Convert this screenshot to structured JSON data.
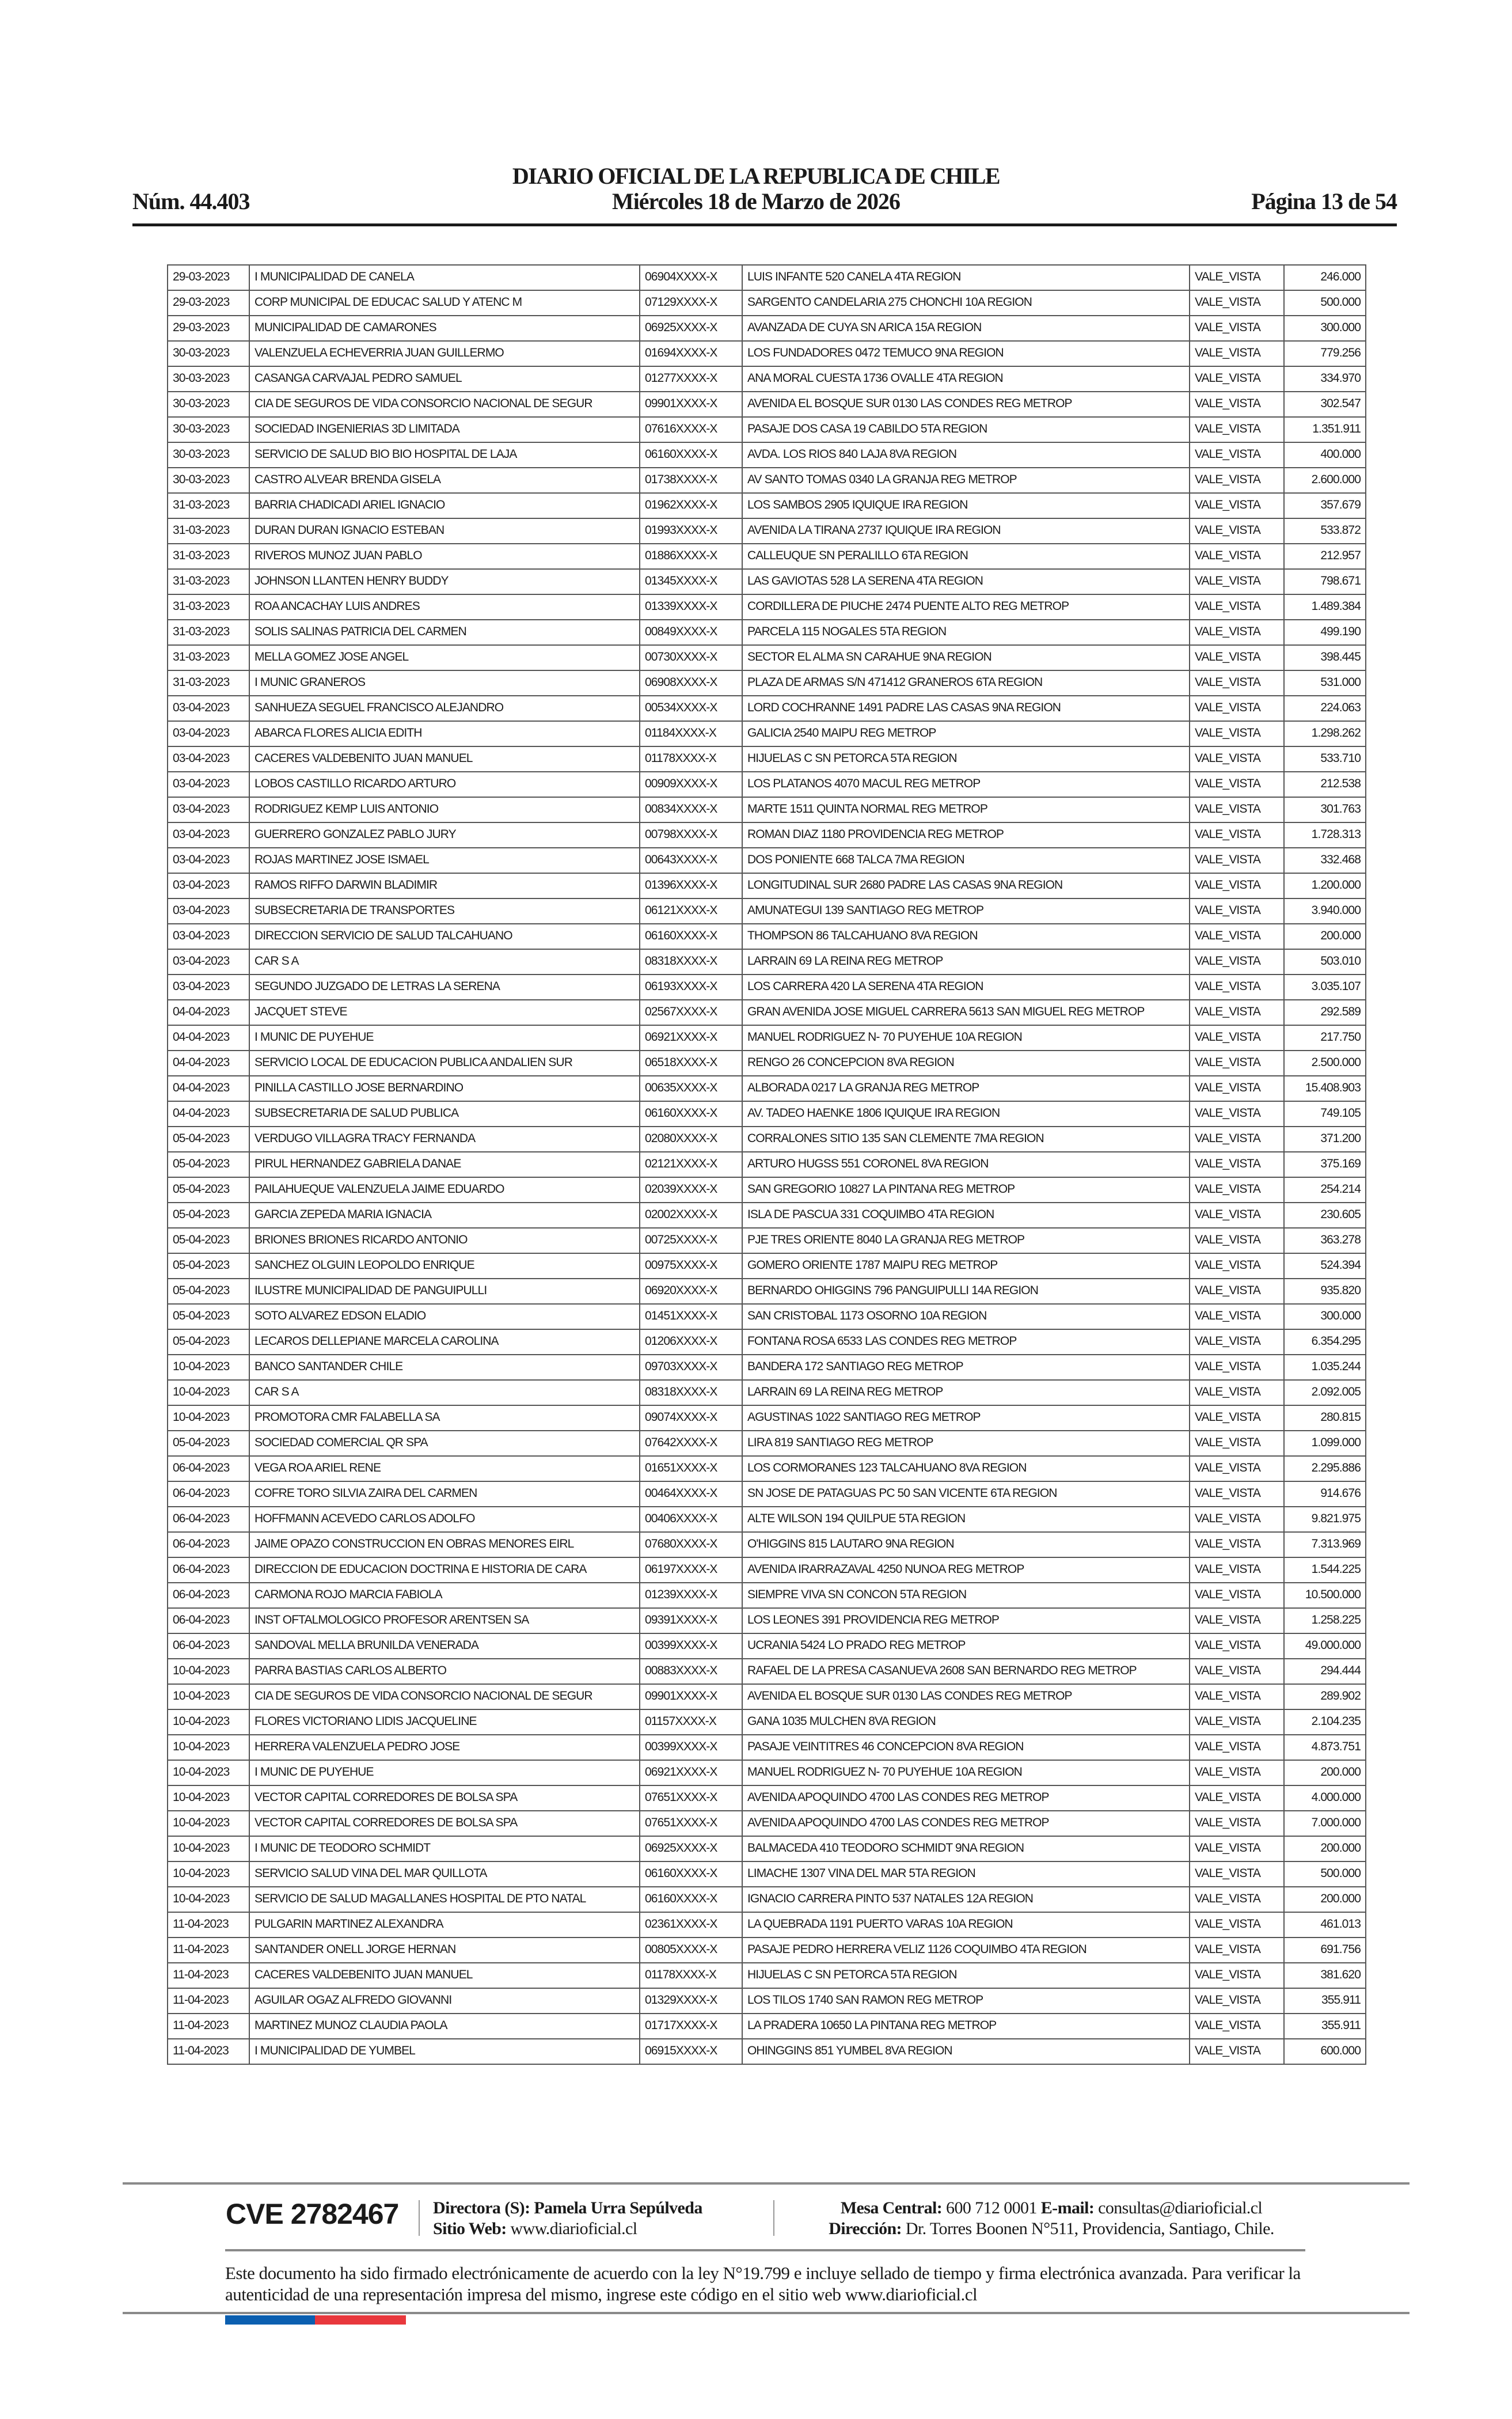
{
  "header": {
    "title": "DIARIO OFICIAL DE LA REPUBLICA DE CHILE",
    "number": "Núm. 44.403",
    "date": "Miércoles 18 de Marzo de 2026",
    "page": "Página 13 de 54"
  },
  "table": {
    "rows": [
      [
        "29-03-2023",
        "I MUNICIPALIDAD DE CANELA",
        "06904XXXX-X",
        "LUIS INFANTE 520 CANELA 4TA REGION",
        "VALE_VISTA",
        "246.000"
      ],
      [
        "29-03-2023",
        "CORP MUNICIPAL DE EDUCAC SALUD Y ATENC M",
        "07129XXXX-X",
        "SARGENTO CANDELARIA 275 CHONCHI 10A REGION",
        "VALE_VISTA",
        "500.000"
      ],
      [
        "29-03-2023",
        "MUNICIPALIDAD DE CAMARONES",
        "06925XXXX-X",
        "AVANZADA DE CUYA SN ARICA 15A REGION",
        "VALE_VISTA",
        "300.000"
      ],
      [
        "30-03-2023",
        "VALENZUELA ECHEVERRIA JUAN GUILLERMO",
        "01694XXXX-X",
        "LOS FUNDADORES 0472 TEMUCO 9NA REGION",
        "VALE_VISTA",
        "779.256"
      ],
      [
        "30-03-2023",
        "CASANGA CARVAJAL PEDRO SAMUEL",
        "01277XXXX-X",
        "ANA MORAL CUESTA 1736 OVALLE 4TA REGION",
        "VALE_VISTA",
        "334.970"
      ],
      [
        "30-03-2023",
        "CIA DE SEGUROS DE VIDA CONSORCIO NACIONAL DE SEGUR",
        "09901XXXX-X",
        "AVENIDA EL BOSQUE SUR 0130 LAS CONDES REG METROP",
        "VALE_VISTA",
        "302.547"
      ],
      [
        "30-03-2023",
        "SOCIEDAD INGENIERIAS 3D LIMITADA",
        "07616XXXX-X",
        "PASAJE DOS CASA 19 CABILDO 5TA REGION",
        "VALE_VISTA",
        "1.351.911"
      ],
      [
        "30-03-2023",
        "SERVICIO DE SALUD BIO BIO HOSPITAL DE LAJA",
        "06160XXXX-X",
        "AVDA. LOS RIOS 840 LAJA 8VA REGION",
        "VALE_VISTA",
        "400.000"
      ],
      [
        "30-03-2023",
        "CASTRO ALVEAR BRENDA GISELA",
        "01738XXXX-X",
        "AV SANTO TOMAS 0340 LA GRANJA REG METROP",
        "VALE_VISTA",
        "2.600.000"
      ],
      [
        "31-03-2023",
        "BARRIA CHADICADI ARIEL IGNACIO",
        "01962XXXX-X",
        "LOS SAMBOS 2905 IQUIQUE IRA REGION",
        "VALE_VISTA",
        "357.679"
      ],
      [
        "31-03-2023",
        "DURAN DURAN IGNACIO ESTEBAN",
        "01993XXXX-X",
        "AVENIDA LA TIRANA 2737 IQUIQUE IRA REGION",
        "VALE_VISTA",
        "533.872"
      ],
      [
        "31-03-2023",
        "RIVEROS MUNOZ JUAN PABLO",
        "01886XXXX-X",
        "CALLEUQUE SN PERALILLO 6TA REGION",
        "VALE_VISTA",
        "212.957"
      ],
      [
        "31-03-2023",
        "JOHNSON LLANTEN HENRY BUDDY",
        "01345XXXX-X",
        "LAS GAVIOTAS 528 LA SERENA 4TA REGION",
        "VALE_VISTA",
        "798.671"
      ],
      [
        "31-03-2023",
        "ROA ANCACHAY LUIS ANDRES",
        "01339XXXX-X",
        "CORDILLERA DE PIUCHE 2474 PUENTE ALTO REG METROP",
        "VALE_VISTA",
        "1.489.384"
      ],
      [
        "31-03-2023",
        "SOLIS SALINAS PATRICIA DEL CARMEN",
        "00849XXXX-X",
        "PARCELA 115 NOGALES 5TA REGION",
        "VALE_VISTA",
        "499.190"
      ],
      [
        "31-03-2023",
        "MELLA GOMEZ JOSE ANGEL",
        "00730XXXX-X",
        "SECTOR EL ALMA SN CARAHUE 9NA REGION",
        "VALE_VISTA",
        "398.445"
      ],
      [
        "31-03-2023",
        "I MUNIC GRANEROS",
        "06908XXXX-X",
        "PLAZA DE ARMAS S/N 471412 GRANEROS 6TA REGION",
        "VALE_VISTA",
        "531.000"
      ],
      [
        "03-04-2023",
        "SANHUEZA SEGUEL FRANCISCO ALEJANDRO",
        "00534XXXX-X",
        "LORD COCHRANNE 1491 PADRE LAS CASAS 9NA REGION",
        "VALE_VISTA",
        "224.063"
      ],
      [
        "03-04-2023",
        "ABARCA FLORES ALICIA EDITH",
        "01184XXXX-X",
        "GALICIA 2540 MAIPU REG METROP",
        "VALE_VISTA",
        "1.298.262"
      ],
      [
        "03-04-2023",
        "CACERES VALDEBENITO JUAN MANUEL",
        "01178XXXX-X",
        "HIJUELAS C SN PETORCA 5TA REGION",
        "VALE_VISTA",
        "533.710"
      ],
      [
        "03-04-2023",
        "LOBOS CASTILLO RICARDO ARTURO",
        "00909XXXX-X",
        "LOS PLATANOS 4070 MACUL REG METROP",
        "VALE_VISTA",
        "212.538"
      ],
      [
        "03-04-2023",
        "RODRIGUEZ KEMP LUIS ANTONIO",
        "00834XXXX-X",
        "MARTE 1511 QUINTA NORMAL REG METROP",
        "VALE_VISTA",
        "301.763"
      ],
      [
        "03-04-2023",
        "GUERRERO GONZALEZ PABLO JURY",
        "00798XXXX-X",
        "ROMAN DIAZ 1180 PROVIDENCIA REG METROP",
        "VALE_VISTA",
        "1.728.313"
      ],
      [
        "03-04-2023",
        "ROJAS MARTINEZ JOSE ISMAEL",
        "00643XXXX-X",
        "DOS PONIENTE 668 TALCA 7MA REGION",
        "VALE_VISTA",
        "332.468"
      ],
      [
        "03-04-2023",
        "RAMOS RIFFO DARWIN BLADIMIR",
        "01396XXXX-X",
        "LONGITUDINAL SUR 2680 PADRE LAS CASAS 9NA REGION",
        "VALE_VISTA",
        "1.200.000"
      ],
      [
        "03-04-2023",
        "SUBSECRETARIA DE TRANSPORTES",
        "06121XXXX-X",
        "AMUNATEGUI 139 SANTIAGO REG METROP",
        "VALE_VISTA",
        "3.940.000"
      ],
      [
        "03-04-2023",
        "DIRECCION SERVICIO DE SALUD TALCAHUANO",
        "06160XXXX-X",
        "THOMPSON 86 TALCAHUANO 8VA REGION",
        "VALE_VISTA",
        "200.000"
      ],
      [
        "03-04-2023",
        "CAR S A",
        "08318XXXX-X",
        "LARRAIN 69 LA REINA REG METROP",
        "VALE_VISTA",
        "503.010"
      ],
      [
        "03-04-2023",
        "SEGUNDO JUZGADO DE LETRAS LA SERENA",
        "06193XXXX-X",
        "LOS CARRERA 420 LA SERENA 4TA REGION",
        "VALE_VISTA",
        "3.035.107"
      ],
      [
        "04-04-2023",
        "JACQUET  STEVE",
        "02567XXXX-X",
        "GRAN AVENIDA JOSE MIGUEL CARRERA 5613 SAN MIGUEL REG METROP",
        "VALE_VISTA",
        "292.589"
      ],
      [
        "04-04-2023",
        "I MUNIC DE PUYEHUE",
        "06921XXXX-X",
        "MANUEL RODRIGUEZ N- 70 PUYEHUE 10A REGION",
        "VALE_VISTA",
        "217.750"
      ],
      [
        "04-04-2023",
        "SERVICIO LOCAL DE EDUCACION PUBLICA ANDALIEN SUR",
        "06518XXXX-X",
        "RENGO 26 CONCEPCION 8VA REGION",
        "VALE_VISTA",
        "2.500.000"
      ],
      [
        "04-04-2023",
        "PINILLA CASTILLO JOSE BERNARDINO",
        "00635XXXX-X",
        "ALBORADA 0217 LA GRANJA REG METROP",
        "VALE_VISTA",
        "15.408.903"
      ],
      [
        "04-04-2023",
        "SUBSECRETARIA DE SALUD PUBLICA",
        "06160XXXX-X",
        "AV. TADEO HAENKE 1806 IQUIQUE IRA REGION",
        "VALE_VISTA",
        "749.105"
      ],
      [
        "05-04-2023",
        "VERDUGO VILLAGRA TRACY FERNANDA",
        "02080XXXX-X",
        "CORRALONES SITIO 135 SAN CLEMENTE 7MA REGION",
        "VALE_VISTA",
        "371.200"
      ],
      [
        "05-04-2023",
        "PIRUL HERNANDEZ GABRIELA DANAE",
        "02121XXXX-X",
        "ARTURO HUGSS 551 CORONEL 8VA REGION",
        "VALE_VISTA",
        "375.169"
      ],
      [
        "05-04-2023",
        "PAILAHUEQUE VALENZUELA JAIME EDUARDO",
        "02039XXXX-X",
        "SAN GREGORIO 10827 LA PINTANA REG METROP",
        "VALE_VISTA",
        "254.214"
      ],
      [
        "05-04-2023",
        "GARCIA ZEPEDA MARIA IGNACIA",
        "02002XXXX-X",
        "ISLA DE PASCUA 331 COQUIMBO 4TA REGION",
        "VALE_VISTA",
        "230.605"
      ],
      [
        "05-04-2023",
        "BRIONES BRIONES RICARDO ANTONIO",
        "00725XXXX-X",
        "PJE TRES ORIENTE 8040 LA GRANJA REG METROP",
        "VALE_VISTA",
        "363.278"
      ],
      [
        "05-04-2023",
        "SANCHEZ OLGUIN LEOPOLDO ENRIQUE",
        "00975XXXX-X",
        "GOMERO ORIENTE 1787 MAIPU REG METROP",
        "VALE_VISTA",
        "524.394"
      ],
      [
        "05-04-2023",
        "ILUSTRE MUNICIPALIDAD DE PANGUIPULLI",
        "06920XXXX-X",
        "BERNARDO OHIGGINS 796 PANGUIPULLI 14A REGION",
        "VALE_VISTA",
        "935.820"
      ],
      [
        "05-04-2023",
        "SOTO ALVAREZ EDSON ELADIO",
        "01451XXXX-X",
        "SAN CRISTOBAL 1173 OSORNO 10A REGION",
        "VALE_VISTA",
        "300.000"
      ],
      [
        "05-04-2023",
        "LECAROS DELLEPIANE MARCELA CAROLINA",
        "01206XXXX-X",
        "FONTANA ROSA 6533 LAS CONDES REG METROP",
        "VALE_VISTA",
        "6.354.295"
      ],
      [
        "10-04-2023",
        "BANCO SANTANDER CHILE",
        "09703XXXX-X",
        "BANDERA 172 SANTIAGO REG METROP",
        "VALE_VISTA",
        "1.035.244"
      ],
      [
        "10-04-2023",
        "CAR S A",
        "08318XXXX-X",
        "LARRAIN 69 LA REINA REG METROP",
        "VALE_VISTA",
        "2.092.005"
      ],
      [
        "10-04-2023",
        "PROMOTORA CMR FALABELLA SA",
        "09074XXXX-X",
        "AGUSTINAS 1022 SANTIAGO REG METROP",
        "VALE_VISTA",
        "280.815"
      ],
      [
        "05-04-2023",
        "SOCIEDAD COMERCIAL QR SPA",
        "07642XXXX-X",
        "LIRA 819 SANTIAGO REG METROP",
        "VALE_VISTA",
        "1.099.000"
      ],
      [
        "06-04-2023",
        "VEGA ROA ARIEL RENE",
        "01651XXXX-X",
        "LOS CORMORANES 123 TALCAHUANO 8VA REGION",
        "VALE_VISTA",
        "2.295.886"
      ],
      [
        "06-04-2023",
        "COFRE TORO SILVIA ZAIRA DEL CARMEN",
        "00464XXXX-X",
        "SN JOSE DE PATAGUAS PC 50 SAN VICENTE 6TA REGION",
        "VALE_VISTA",
        "914.676"
      ],
      [
        "06-04-2023",
        "HOFFMANN ACEVEDO CARLOS ADOLFO",
        "00406XXXX-X",
        "ALTE WILSON 194 QUILPUE 5TA REGION",
        "VALE_VISTA",
        "9.821.975"
      ],
      [
        "06-04-2023",
        "JAIME OPAZO CONSTRUCCION EN OBRAS MENORES EIRL",
        "07680XXXX-X",
        "O'HIGGINS 815 LAUTARO 9NA REGION",
        "VALE_VISTA",
        "7.313.969"
      ],
      [
        "06-04-2023",
        "DIRECCION DE EDUCACION DOCTRINA E HISTORIA DE CARA",
        "06197XXXX-X",
        "AVENIDA IRARRAZAVAL 4250 NUNOA REG METROP",
        "VALE_VISTA",
        "1.544.225"
      ],
      [
        "06-04-2023",
        "CARMONA ROJO MARCIA FABIOLA",
        "01239XXXX-X",
        "SIEMPRE VIVA SN CONCON 5TA REGION",
        "VALE_VISTA",
        "10.500.000"
      ],
      [
        "06-04-2023",
        "INST OFTALMOLOGICO PROFESOR ARENTSEN SA",
        "09391XXXX-X",
        "LOS LEONES 391 PROVIDENCIA REG METROP",
        "VALE_VISTA",
        "1.258.225"
      ],
      [
        "06-04-2023",
        "SANDOVAL MELLA BRUNILDA VENERADA",
        "00399XXXX-X",
        "UCRANIA 5424 LO PRADO REG METROP",
        "VALE_VISTA",
        "49.000.000"
      ],
      [
        "10-04-2023",
        "PARRA BASTIAS CARLOS ALBERTO",
        "00883XXXX-X",
        "RAFAEL DE LA PRESA CASANUEVA 2608 SAN BERNARDO REG METROP",
        "VALE_VISTA",
        "294.444"
      ],
      [
        "10-04-2023",
        "CIA DE SEGUROS DE VIDA CONSORCIO NACIONAL DE SEGUR",
        "09901XXXX-X",
        "AVENIDA EL BOSQUE SUR 0130 LAS CONDES REG METROP",
        "VALE_VISTA",
        "289.902"
      ],
      [
        "10-04-2023",
        "FLORES VICTORIANO LIDIS JACQUELINE",
        "01157XXXX-X",
        "GANA 1035 MULCHEN 8VA REGION",
        "VALE_VISTA",
        "2.104.235"
      ],
      [
        "10-04-2023",
        "HERRERA VALENZUELA PEDRO JOSE",
        "00399XXXX-X",
        "PASAJE VEINTITRES 46 CONCEPCION 8VA REGION",
        "VALE_VISTA",
        "4.873.751"
      ],
      [
        "10-04-2023",
        "I MUNIC DE PUYEHUE",
        "06921XXXX-X",
        "MANUEL RODRIGUEZ N- 70 PUYEHUE 10A REGION",
        "VALE_VISTA",
        "200.000"
      ],
      [
        "10-04-2023",
        "VECTOR CAPITAL CORREDORES DE BOLSA SPA",
        "07651XXXX-X",
        "AVENIDA APOQUINDO 4700 LAS CONDES REG METROP",
        "VALE_VISTA",
        "4.000.000"
      ],
      [
        "10-04-2023",
        "VECTOR CAPITAL CORREDORES DE BOLSA SPA",
        "07651XXXX-X",
        "AVENIDA APOQUINDO 4700 LAS CONDES REG METROP",
        "VALE_VISTA",
        "7.000.000"
      ],
      [
        "10-04-2023",
        "I MUNIC DE TEODORO SCHMIDT",
        "06925XXXX-X",
        "BALMACEDA 410 TEODORO SCHMIDT 9NA REGION",
        "VALE_VISTA",
        "200.000"
      ],
      [
        "10-04-2023",
        "SERVICIO SALUD VINA DEL MAR QUILLOTA",
        "06160XXXX-X",
        "LIMACHE 1307 VINA DEL MAR 5TA REGION",
        "VALE_VISTA",
        "500.000"
      ],
      [
        "10-04-2023",
        "SERVICIO DE SALUD MAGALLANES HOSPITAL DE PTO NATAL",
        "06160XXXX-X",
        "IGNACIO CARRERA PINTO 537 NATALES 12A REGION",
        "VALE_VISTA",
        "200.000"
      ],
      [
        "11-04-2023",
        "PULGARIN MARTINEZ ALEXANDRA",
        "02361XXXX-X",
        "LA QUEBRADA 1191 PUERTO VARAS 10A REGION",
        "VALE_VISTA",
        "461.013"
      ],
      [
        "11-04-2023",
        "SANTANDER ONELL JORGE HERNAN",
        "00805XXXX-X",
        "PASAJE PEDRO HERRERA VELIZ 1126 COQUIMBO 4TA REGION",
        "VALE_VISTA",
        "691.756"
      ],
      [
        "11-04-2023",
        "CACERES VALDEBENITO JUAN MANUEL",
        "01178XXXX-X",
        "HIJUELAS C SN PETORCA 5TA REGION",
        "VALE_VISTA",
        "381.620"
      ],
      [
        "11-04-2023",
        "AGUILAR OGAZ ALFREDO GIOVANNI",
        "01329XXXX-X",
        "LOS TILOS 1740 SAN RAMON REG METROP",
        "VALE_VISTA",
        "355.911"
      ],
      [
        "11-04-2023",
        "MARTINEZ MUNOZ CLAUDIA PAOLA",
        "01717XXXX-X",
        "LA PRADERA 10650 LA PINTANA REG METROP",
        "VALE_VISTA",
        "355.911"
      ],
      [
        "11-04-2023",
        "I MUNICIPALIDAD DE YUMBEL",
        "06915XXXX-X",
        "OHINGGINS 851 YUMBEL 8VA REGION",
        "VALE_VISTA",
        "600.000"
      ]
    ]
  },
  "footer": {
    "cve": "CVE 2782467",
    "director_label": "Directora (S):",
    "director_name": "Pamela Urra Sepúlveda",
    "website_label": "Sitio Web:",
    "website": "www.diarioficial.cl",
    "phone_label": "Mesa Central:",
    "phone": "600 712 0001",
    "email_label": "E-mail:",
    "email": "consultas@diarioficial.cl",
    "address_label": "Dirección:",
    "address": "Dr. Torres Boonen N°511, Providencia, Santiago, Chile.",
    "signature_text": "Este documento ha sido firmado electrónicamente de acuerdo con la ley N°19.799 e incluye sellado de tiempo y firma electrónica avanzada. Para verificar la autenticidad de una representación impresa del mismo, ingrese este código en el sitio web www.diarioficial.cl",
    "flag_colors": [
      "#0b5fb0",
      "#e8383d"
    ]
  }
}
